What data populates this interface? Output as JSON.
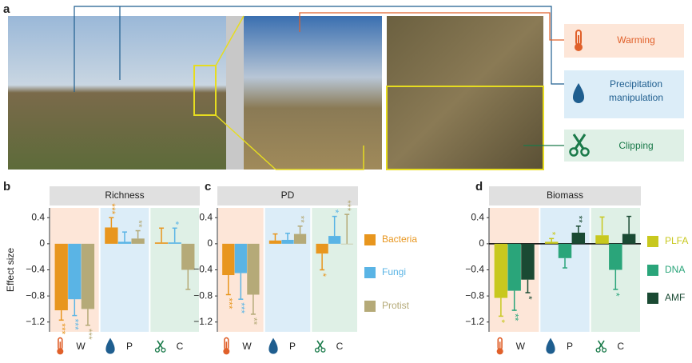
{
  "panels": {
    "a": "a",
    "b": "b",
    "c": "c",
    "d": "d"
  },
  "photo_legend": [
    "Warming",
    "Precipitation manipulation",
    "Clipping"
  ],
  "chart_data": [
    {
      "type": "bar",
      "title": "Richness",
      "y_label": "Effect size",
      "categories": [
        "W",
        "P",
        "C"
      ],
      "group_colors": [
        "#fde6d8",
        "#dcedf8",
        "#dff0e6"
      ],
      "ylim": [
        -1.35,
        0.55
      ],
      "yticks": [
        0.4,
        0,
        {
          "value": -0.4,
          "label": "−0.4"
        },
        {
          "value": -0.8,
          "label": "−0.8"
        },
        {
          "value": -1.2,
          "label": "−1.2"
        }
      ],
      "series": [
        {
          "color": "#e8961e",
          "values": [
            -1.02,
            0.25,
            0.02
          ],
          "errors": [
            0.15,
            0.15,
            0.22
          ],
          "stars": [
            "***",
            "***",
            null
          ]
        },
        {
          "color": "#5ab4e5",
          "values": [
            -0.85,
            0.03,
            0.02
          ],
          "errors": [
            0.25,
            0.15,
            0.22
          ],
          "stars": [
            "***",
            null,
            "*"
          ]
        },
        {
          "color": "#b5aa78",
          "values": [
            -1.0,
            0.08,
            -0.4
          ],
          "errors": [
            0.25,
            0.12,
            0.3
          ],
          "stars": [
            "***",
            "**",
            null
          ]
        }
      ]
    },
    {
      "type": "bar",
      "title": "PD",
      "categories": [
        "W",
        "P",
        "C"
      ],
      "group_colors": [
        "#fde6d8",
        "#dcedf8",
        "#dff0e6"
      ],
      "ylim": [
        -1.35,
        0.55
      ],
      "yticks": [
        0.4,
        0,
        {
          "value": -0.4,
          "label": "−0.4"
        },
        {
          "value": -0.8,
          "label": "−0.8"
        },
        {
          "value": -1.2,
          "label": "−1.2"
        }
      ],
      "series": [
        {
          "name": "Bacteria",
          "color": "#e8961e",
          "values": [
            -0.48,
            0.05,
            -0.15
          ],
          "errors": [
            0.3,
            0.1,
            0.25
          ],
          "stars": [
            "***",
            null,
            "*"
          ]
        },
        {
          "name": "Fungi",
          "color": "#5ab4e5",
          "values": [
            -0.45,
            0.06,
            0.12
          ],
          "errors": [
            0.4,
            0.1,
            0.3
          ],
          "stars": [
            "***",
            null,
            "*"
          ]
        },
        {
          "name": "Protist",
          "color": "#b5aa78",
          "values": [
            -0.78,
            0.15,
            0.0
          ],
          "errors": [
            0.3,
            0.12,
            0.45
          ],
          "stars": [
            "**",
            "**",
            "***"
          ]
        }
      ]
    },
    {
      "type": "bar",
      "title": "Biomass",
      "categories": [
        "W",
        "P",
        "C"
      ],
      "zero_line": true,
      "group_colors": [
        "#fde6d8",
        "#dcedf8",
        "#dff0e6"
      ],
      "ylim": [
        -1.35,
        0.55
      ],
      "yticks": [
        0.4,
        0,
        {
          "value": -0.4,
          "label": "−0.4"
        },
        {
          "value": -0.8,
          "label": "−0.8"
        },
        {
          "value": -1.2,
          "label": "−1.2"
        }
      ],
      "series": [
        {
          "name": "PLFA",
          "color": "#c8c81e",
          "values": [
            -0.83,
            0.03,
            0.13
          ],
          "errors": [
            0.28,
            0.05,
            0.28
          ],
          "stars": [
            "*",
            "*",
            null
          ]
        },
        {
          "name": "DNA",
          "color": "#2aa57a",
          "values": [
            -0.72,
            -0.22,
            -0.4
          ],
          "errors": [
            0.3,
            0.15,
            0.3
          ],
          "stars": [
            "**",
            null,
            "*"
          ]
        },
        {
          "name": "AMF",
          "color": "#1a4a33",
          "values": [
            -0.55,
            0.17,
            0.15
          ],
          "errors": [
            0.2,
            0.1,
            0.27
          ],
          "stars": [
            "*",
            "**",
            null
          ]
        }
      ]
    }
  ]
}
